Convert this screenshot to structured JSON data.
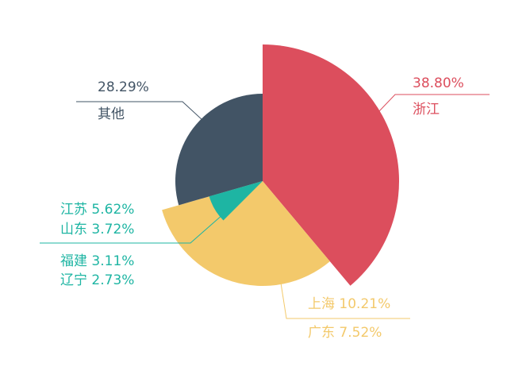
{
  "chart_data": {
    "type": "pie",
    "variant": "rose",
    "slices": [
      {
        "key": "zhejiang",
        "value": 38.8,
        "color": "#dc4e5d",
        "label_lines": [
          {
            "text": "38.80%"
          },
          {
            "text": "浙江"
          }
        ]
      },
      {
        "key": "shanghai_guangdong",
        "value": 17.73,
        "color": "#f3c96b",
        "label_lines": [
          {
            "text": "上海 10.21%"
          },
          {
            "text": "广东 7.52%"
          }
        ]
      },
      {
        "key": "others_small",
        "value": 15.18,
        "color": "#1eb5a3",
        "label_lines": [
          {
            "text": "江苏 5.62%"
          },
          {
            "text": "山东 3.72%"
          },
          {
            "text": "福建 3.11%"
          },
          {
            "text": "辽宁 2.73%"
          }
        ]
      },
      {
        "key": "other",
        "value": 28.29,
        "color": "#425465",
        "label_lines": [
          {
            "text": "28.29%"
          },
          {
            "text": "其他"
          }
        ]
      }
    ]
  }
}
